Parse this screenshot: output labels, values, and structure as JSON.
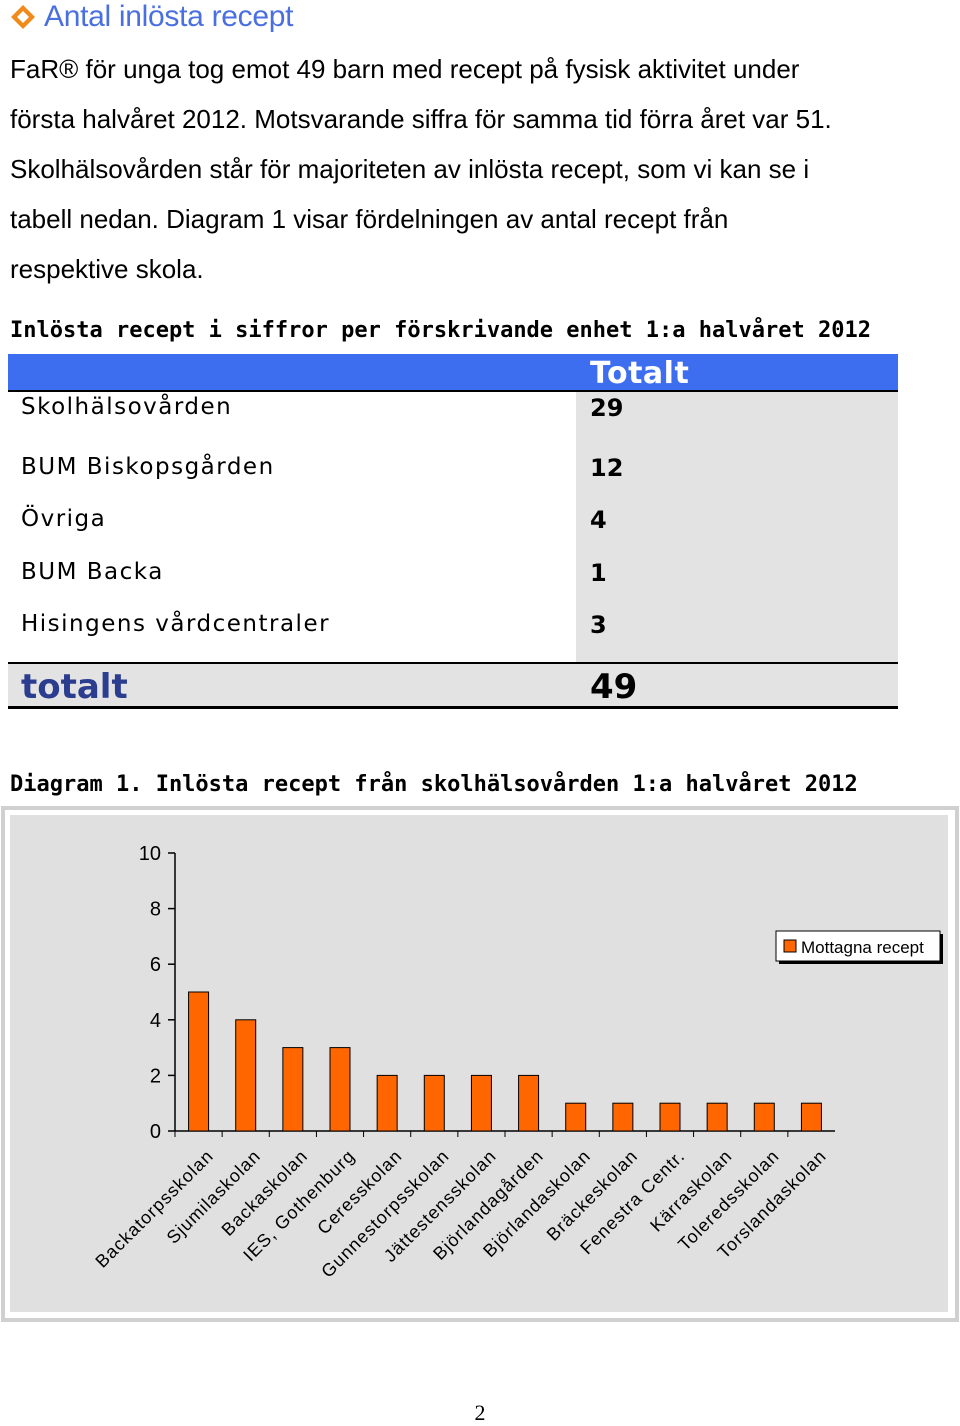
{
  "heading": {
    "title": "Antal inlösta recept",
    "icon": "diamond-bullet-icon",
    "accent": "#4a6fe0"
  },
  "intro": {
    "lines": [
      "FaR®  för unga tog emot 49 barn med recept på fysisk aktivitet under",
      "första halvåret 2012. Motsvarande siffra för samma tid förra året var 51.",
      "Skolhälsovården står för majoriteten av inlösta recept, som vi kan se i",
      "tabell nedan. Diagram 1 visar fördelningen av antal recept från",
      "respektive skola."
    ]
  },
  "table": {
    "title": "Inlösta recept i siffror per förskrivande enhet 1:a halvåret 2012",
    "column_header": "Totalt",
    "header_color": "#3d6ef0",
    "rows": [
      {
        "label": "Skolhälsovården",
        "value": "29"
      },
      {
        "label": "BUM Biskopsgården",
        "value": "12"
      },
      {
        "label": "Övriga",
        "value": "4"
      },
      {
        "label": "BUM Backa",
        "value": "1"
      },
      {
        "label": "Hisingens vårdcentraler",
        "value": "3"
      }
    ],
    "total": {
      "label": "totalt",
      "value": "49"
    }
  },
  "diagram": {
    "title": "Diagram 1. Inlösta recept från skolhälsovården 1:a halvåret 2012"
  },
  "chart_data": {
    "type": "bar",
    "categories": [
      "Backatorpsskolan",
      "Sjumilaskolan",
      "Backaskolan",
      "IES, Gothenburg",
      "Ceresskolan",
      "Gunnestorpsskolan",
      "Jättestensskolan",
      "Björlandagården",
      "Björlandaskolan",
      "Bräckeskolan",
      "Fenestra Centr.",
      "Kärraskolan",
      "Toleredsskolan",
      "Torslandaskolan"
    ],
    "series": [
      {
        "name": "Mottagna recept",
        "values": [
          5,
          4,
          3,
          3,
          2,
          2,
          2,
          2,
          1,
          1,
          1,
          1,
          1,
          1
        ],
        "color": "#ff6600"
      }
    ],
    "yticks": [
      "0",
      "2",
      "4",
      "6",
      "8",
      "10"
    ],
    "ylim": [
      0,
      10
    ],
    "legend": "right",
    "grid": false,
    "plot_background": "#e0e0e0"
  },
  "page_number": "2"
}
